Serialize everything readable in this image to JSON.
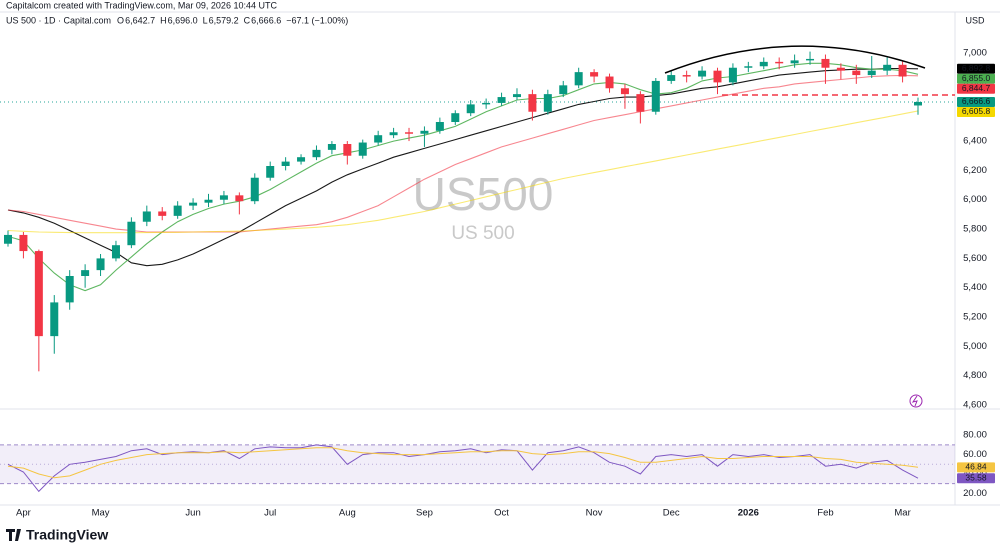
{
  "header": {
    "credit": "Capitalcom created with TradingView.com, Mar 09, 2026 10:44 UTC",
    "symbol": "US 500 · 1D · Capital.com",
    "ohlc": [
      {
        "key": "O",
        "text": "6,642.7"
      },
      {
        "key": "H",
        "text": "6,696.0"
      },
      {
        "key": "L",
        "text": "6,579.2"
      },
      {
        "key": "C",
        "text": "6,666.6"
      }
    ],
    "change": "−67.1 (−1.00%)",
    "currency": "USD",
    "watermark": "US500",
    "watermark_sub": "US 500",
    "logo": "TradingView"
  },
  "chart_data": [
    {
      "type": "candlestick",
      "categories": [
        null,
        "Apr",
        null,
        null,
        null,
        null,
        "May",
        null,
        null,
        null,
        null,
        null,
        "Jun",
        null,
        null,
        null,
        null,
        "Jul",
        null,
        null,
        null,
        null,
        "Aug",
        null,
        null,
        null,
        null,
        "Sep",
        null,
        null,
        null,
        null,
        "Oct",
        null,
        null,
        null,
        null,
        null,
        "Nov",
        null,
        null,
        null,
        null,
        "Dec",
        null,
        null,
        null,
        null,
        "2026",
        null,
        null,
        null,
        null,
        "Feb",
        null,
        null,
        null,
        null,
        "Mar",
        null
      ],
      "open": [
        5700,
        5760,
        5650,
        5070,
        5300,
        5480,
        5520,
        5600,
        5690,
        5850,
        5920,
        5890,
        5960,
        5980,
        6000,
        6030,
        5990,
        6150,
        6230,
        6260,
        6290,
        6340,
        6380,
        6300,
        6390,
        6440,
        6460,
        6450,
        6470,
        6530,
        6590,
        6650,
        6660,
        6700,
        6720,
        6600,
        6720,
        6780,
        6870,
        6840,
        6760,
        6720,
        6600,
        6810,
        6850,
        6840,
        6880,
        6800,
        6900,
        6910,
        6940,
        6930,
        6950,
        6960,
        6900,
        6880,
        6850,
        6880,
        6920,
        6642.7
      ],
      "high": [
        5790,
        5780,
        5660,
        5350,
        5520,
        5560,
        5630,
        5720,
        5880,
        5960,
        5950,
        5990,
        6010,
        6040,
        6060,
        6050,
        6180,
        6260,
        6290,
        6310,
        6370,
        6400,
        6400,
        6410,
        6470,
        6490,
        6490,
        6500,
        6560,
        6610,
        6680,
        6690,
        6730,
        6760,
        6750,
        6750,
        6810,
        6900,
        6890,
        6860,
        6790,
        6740,
        6830,
        6880,
        6880,
        6910,
        6900,
        6930,
        6940,
        6970,
        6970,
        6990,
        7010,
        6990,
        6930,
        6920,
        6980,
        6970,
        6950,
        6696
      ],
      "low": [
        5680,
        5600,
        4830,
        4950,
        5250,
        5400,
        5480,
        5580,
        5670,
        5820,
        5860,
        5870,
        5930,
        5950,
        5970,
        5900,
        5970,
        6130,
        6200,
        6240,
        6270,
        6310,
        6240,
        6280,
        6370,
        6420,
        6400,
        6360,
        6450,
        6510,
        6570,
        6620,
        6640,
        6680,
        6540,
        6580,
        6700,
        6760,
        6800,
        6730,
        6620,
        6520,
        6580,
        6790,
        6800,
        6820,
        6720,
        6780,
        6870,
        6890,
        6890,
        6900,
        6920,
        6790,
        6820,
        6790,
        6830,
        6850,
        6800,
        6579.2
      ],
      "close": [
        5760,
        5650,
        5070,
        5300,
        5480,
        5520,
        5600,
        5690,
        5850,
        5920,
        5890,
        5960,
        5980,
        6000,
        6030,
        5990,
        6150,
        6230,
        6260,
        6290,
        6340,
        6380,
        6300,
        6390,
        6440,
        6460,
        6450,
        6470,
        6530,
        6590,
        6650,
        6660,
        6700,
        6720,
        6600,
        6720,
        6780,
        6870,
        6840,
        6760,
        6720,
        6600,
        6810,
        6850,
        6840,
        6880,
        6800,
        6900,
        6910,
        6940,
        6930,
        6950,
        6960,
        6900,
        6880,
        6850,
        6880,
        6920,
        6840,
        6666.6
      ],
      "close_label": "6,666.6",
      "up_color": "#089981",
      "down_color": "#f23645",
      "series": [
        {
          "color": "#000000",
          "last_label": "6,892.8",
          "values": [
            5930,
            5910,
            5880,
            5840,
            5790,
            5740,
            5690,
            5640,
            5570,
            5550,
            5560,
            5590,
            5630,
            5680,
            5730,
            5780,
            5840,
            5900,
            5960,
            6010,
            6060,
            6120,
            6170,
            6210,
            6250,
            6290,
            6320,
            6350,
            6380,
            6410,
            6440,
            6470,
            6500,
            6530,
            6560,
            6590,
            6620,
            6650,
            6670,
            6690,
            6700,
            6700,
            6710,
            6720,
            6740,
            6760,
            6770,
            6790,
            6810,
            6830,
            6850,
            6860,
            6870,
            6880,
            6885,
            6890,
            6890,
            6895,
            6895,
            6892.8
          ]
        },
        {
          "color": "#4caf50",
          "last_label": "6,855.0",
          "values": [
            5750,
            5720,
            5600,
            5500,
            5420,
            5380,
            5420,
            5520,
            5610,
            5700,
            5780,
            5850,
            5900,
            5940,
            5970,
            5990,
            6020,
            6070,
            6130,
            6190,
            6250,
            6300,
            6320,
            6340,
            6370,
            6400,
            6420,
            6440,
            6470,
            6500,
            6550,
            6600,
            6640,
            6680,
            6690,
            6690,
            6710,
            6750,
            6790,
            6800,
            6790,
            6750,
            6720,
            6730,
            6760,
            6810,
            6830,
            6840,
            6860,
            6880,
            6900,
            6920,
            6930,
            6930,
            6920,
            6900,
            6890,
            6890,
            6880,
            6855.0
          ]
        },
        {
          "color": "#f23645",
          "last_label": "6,844.7",
          "values": [
            5930,
            5920,
            5900,
            5880,
            5860,
            5840,
            5820,
            5800,
            5790,
            5780,
            5780,
            5780,
            5780,
            5780,
            5780,
            5780,
            5790,
            5800,
            5810,
            5820,
            5830,
            5850,
            5880,
            5920,
            5960,
            6020,
            6080,
            6140,
            6190,
            6240,
            6280,
            6320,
            6360,
            6390,
            6420,
            6450,
            6480,
            6510,
            6540,
            6560,
            6580,
            6600,
            6620,
            6640,
            6660,
            6680,
            6700,
            6720,
            6740,
            6760,
            6770,
            6790,
            6800,
            6810,
            6820,
            6830,
            6840,
            6845,
            6848,
            6844.7
          ]
        },
        {
          "color": "#f5d800",
          "last_label": "6,605.8",
          "values": [
            5790,
            5785,
            5780,
            5778,
            5776,
            5775,
            5775,
            5775,
            5775,
            5776,
            5777,
            5778,
            5780,
            5782,
            5784,
            5786,
            5790,
            5795,
            5800,
            5806,
            5812,
            5820,
            5830,
            5845,
            5860,
            5880,
            5900,
            5920,
            5945,
            5970,
            5995,
            6020,
            6045,
            6070,
            6095,
            6120,
            6145,
            6165,
            6185,
            6205,
            6225,
            6245,
            6265,
            6285,
            6305,
            6325,
            6345,
            6365,
            6385,
            6405,
            6425,
            6445,
            6465,
            6485,
            6505,
            6525,
            6545,
            6565,
            6585,
            6605.8
          ]
        }
      ],
      "ylim": [
        4580,
        7280
      ],
      "yticks": [
        {
          "value": 4600,
          "label": "4,600"
        },
        {
          "value": 4800,
          "label": "4,800"
        },
        {
          "value": 5000,
          "label": "5,000"
        },
        {
          "value": 5200,
          "label": "5,200"
        },
        {
          "value": 5400,
          "label": "5,400"
        },
        {
          "value": 5600,
          "label": "5,600"
        },
        {
          "value": 5800,
          "label": "5,800"
        },
        {
          "value": 6000,
          "label": "6,000"
        },
        {
          "value": 6200,
          "label": "6,200"
        },
        {
          "value": 6400,
          "label": "6,400"
        },
        {
          "value": 6600,
          "label": "6,600"
        },
        {
          "value": 6800,
          "label": "6,800"
        },
        {
          "value": 7000,
          "label": "7,000"
        }
      ],
      "grid": false
    },
    {
      "type": "line",
      "series": [
        {
          "color": "#7e57c2",
          "last_label": "35.58",
          "values": [
            50,
            42,
            22,
            38,
            50,
            52,
            55,
            58,
            64,
            66,
            60,
            62,
            63,
            62,
            64,
            56,
            66,
            68,
            67,
            67,
            70,
            68,
            50,
            60,
            62,
            62,
            58,
            60,
            63,
            64,
            66,
            62,
            65,
            64,
            44,
            62,
            64,
            68,
            62,
            52,
            48,
            40,
            58,
            60,
            58,
            60,
            48,
            60,
            58,
            60,
            57,
            58,
            60,
            48,
            50,
            46,
            52,
            54,
            44,
            35.58
          ]
        },
        {
          "color": "#f5c542",
          "last_label": "46.84",
          "values": [
            48,
            46,
            40,
            36,
            38,
            44,
            50,
            54,
            57,
            60,
            61,
            62,
            62,
            62,
            63,
            62,
            63,
            64,
            65,
            66,
            67,
            67,
            64,
            62,
            61,
            60,
            60,
            60,
            61,
            62,
            63,
            63,
            64,
            64,
            61,
            60,
            61,
            63,
            63,
            61,
            57,
            52,
            52,
            54,
            56,
            58,
            56,
            56,
            57,
            58,
            58,
            58,
            58,
            56,
            55,
            52,
            51,
            50,
            49,
            46.84
          ]
        }
      ],
      "bands": [
        30,
        70
      ],
      "midline": 50,
      "ylim": [
        10,
        104
      ],
      "yticks": [
        {
          "value": 20,
          "label": "20.00"
        },
        {
          "value": 40,
          "label": "40.00"
        },
        {
          "value": 60,
          "label": "60.00"
        },
        {
          "value": 80,
          "label": "80.00"
        }
      ]
    }
  ]
}
